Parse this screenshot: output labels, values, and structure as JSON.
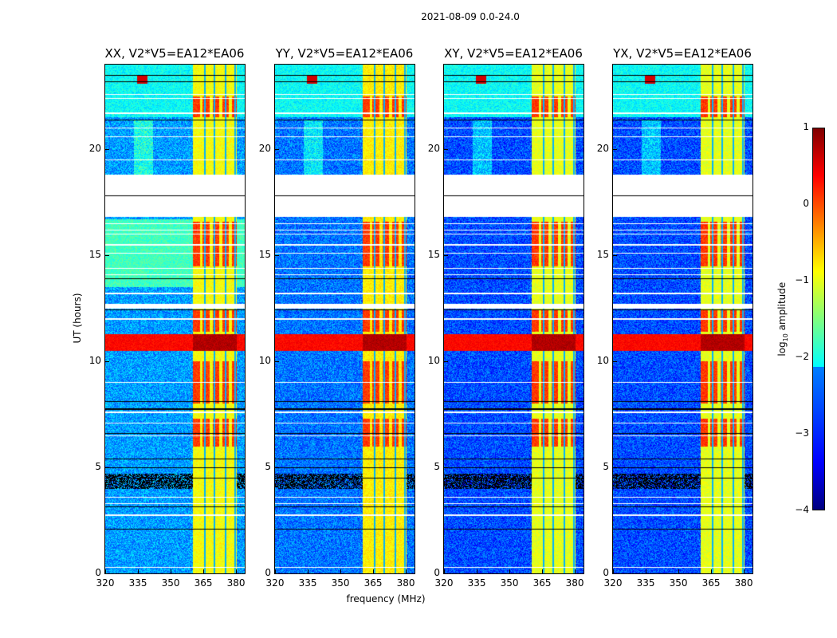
{
  "chart_data": {
    "type": "heatmap",
    "title": "2021-08-09 0.0-24.0",
    "xlabel": "frequency (MHz)",
    "ylabel": "UT (hours)",
    "xlim": [
      320,
      384
    ],
    "ylim": [
      0,
      24
    ],
    "xticks": [
      320,
      335,
      350,
      365,
      380
    ],
    "yticks": [
      0,
      5,
      10,
      15,
      20
    ],
    "panels": [
      {
        "title": "XX, V2*V5=EA12*EA06",
        "low_band_level": -2.6,
        "band_level": -0.9
      },
      {
        "title": "YY, V2*V5=EA12*EA06",
        "low_band_level": -2.8,
        "band_level": -0.8
      },
      {
        "title": "XY, V2*V5=EA12*EA06",
        "low_band_level": -3.0,
        "band_level": -1.0
      },
      {
        "title": "YX, V2*V5=EA12*EA06",
        "low_band_level": -3.0,
        "band_level": -1.0
      }
    ],
    "rfi_band_mhz": [
      360.4,
      380.2
    ],
    "rfi_band_notches_mhz": [
      365.8,
      370.2,
      375.2,
      379.6
    ],
    "broadband_rfi_hours": [
      10.5,
      11.3
    ],
    "data_gaps_hours": [
      [
        16.8,
        18.8
      ],
      [
        12.5,
        12.7
      ]
    ],
    "flagged_hours": [
      4.0,
      4.7
    ],
    "colorbar": {
      "label": "log10 amplitude",
      "label_main": "log",
      "label_sub": "10",
      "label_rest": " amplitude",
      "range": [
        -4,
        1
      ],
      "ticks": [
        "1",
        "0",
        "−1",
        "−2",
        "−3",
        "−4"
      ],
      "colormap": "jet"
    }
  }
}
